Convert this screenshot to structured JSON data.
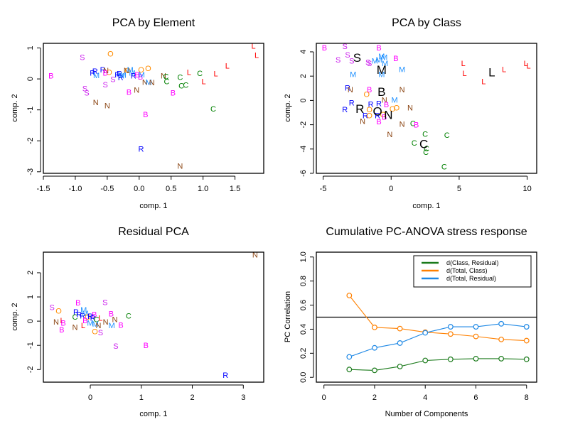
{
  "colors": {
    "B": "#ff00ff",
    "C": "#008000",
    "L": "#ff0000",
    "M": "#1e90ff",
    "N": "#8b4513",
    "O": "#ff8c00",
    "R": "#0000ff",
    "S": "#cc22ee",
    "class_centroid": "#000000",
    "series_class_residual": "#1a7a1a",
    "series_total_class": "#ff8000",
    "series_total_residual": "#1e88e5"
  },
  "chart_data": [
    {
      "type": "scatter",
      "title": "PCA by Element",
      "xlabel": "comp. 1",
      "ylabel": "comp. 2",
      "xlim": [
        -1.5,
        1.95
      ],
      "ylim": [
        -3.05,
        1.15
      ],
      "xticks": [
        "-1.5",
        "-1.0",
        "-0.5",
        "0.0",
        "0.5",
        "1.0",
        "1.5"
      ],
      "xtick_values": [
        -1.5,
        -1.0,
        -0.5,
        0.0,
        0.5,
        1.0,
        1.5
      ],
      "yticks": [
        "1",
        "0",
        "-1",
        "-2",
        "-3"
      ],
      "ytick_values": [
        1,
        0,
        -1,
        -2,
        -3
      ],
      "points": [
        {
          "label": "B",
          "x": -1.38,
          "y": 0.08
        },
        {
          "label": "S",
          "x": -0.89,
          "y": 0.68
        },
        {
          "label": "O",
          "x": -0.45,
          "y": 0.8
        },
        {
          "label": "R",
          "x": -0.73,
          "y": 0.18
        },
        {
          "label": "M",
          "x": -0.67,
          "y": 0.1
        },
        {
          "label": "R",
          "x": -0.69,
          "y": 0.23
        },
        {
          "label": "R",
          "x": -0.57,
          "y": 0.28
        },
        {
          "label": "N",
          "x": -0.52,
          "y": 0.26
        },
        {
          "label": "O",
          "x": -0.47,
          "y": 0.2
        },
        {
          "label": "B",
          "x": -0.53,
          "y": 0.17
        },
        {
          "label": "S",
          "x": -0.53,
          "y": -0.2
        },
        {
          "label": "S",
          "x": -0.41,
          "y": -0.03
        },
        {
          "label": "R",
          "x": -0.34,
          "y": 0.12
        },
        {
          "label": "R",
          "x": -0.31,
          "y": 0.15
        },
        {
          "label": "M",
          "x": -0.28,
          "y": 0.08
        },
        {
          "label": "R",
          "x": -0.29,
          "y": 0.03
        },
        {
          "label": "M",
          "x": -0.25,
          "y": 0.11
        },
        {
          "label": "O",
          "x": -0.18,
          "y": 0.26
        },
        {
          "label": "N",
          "x": -0.2,
          "y": 0.25
        },
        {
          "label": "M",
          "x": -0.14,
          "y": 0.28
        },
        {
          "label": "M",
          "x": -0.11,
          "y": 0.18
        },
        {
          "label": "R",
          "x": -0.09,
          "y": 0.08
        },
        {
          "label": "B",
          "x": -0.03,
          "y": 0.12
        },
        {
          "label": "O",
          "x": 0.03,
          "y": 0.28
        },
        {
          "label": "O",
          "x": 0.14,
          "y": 0.32
        },
        {
          "label": "B",
          "x": 0.02,
          "y": 0.05
        },
        {
          "label": "M",
          "x": 0.04,
          "y": 0.12
        },
        {
          "label": "B",
          "x": -0.16,
          "y": -0.45
        },
        {
          "label": "N",
          "x": -0.04,
          "y": -0.38
        },
        {
          "label": "S",
          "x": -0.85,
          "y": -0.33
        },
        {
          "label": "S",
          "x": -0.82,
          "y": -0.47
        },
        {
          "label": "N",
          "x": -0.68,
          "y": -0.78
        },
        {
          "label": "N",
          "x": -0.5,
          "y": -0.88
        },
        {
          "label": "B",
          "x": 0.1,
          "y": -1.17
        },
        {
          "label": "N",
          "x": 0.09,
          "y": -0.12
        },
        {
          "label": "M",
          "x": 0.15,
          "y": -0.12
        },
        {
          "label": "N",
          "x": 0.2,
          "y": -0.14
        },
        {
          "label": "N",
          "x": 0.38,
          "y": 0.08
        },
        {
          "label": "C",
          "x": 0.42,
          "y": 0.06
        },
        {
          "label": "C",
          "x": 0.43,
          "y": -0.1
        },
        {
          "label": "C",
          "x": 0.64,
          "y": 0.04
        },
        {
          "label": "L",
          "x": 0.78,
          "y": 0.2
        },
        {
          "label": "B",
          "x": 0.53,
          "y": -0.47
        },
        {
          "label": "C",
          "x": 0.66,
          "y": -0.24
        },
        {
          "label": "C",
          "x": 0.73,
          "y": -0.22
        },
        {
          "label": "C",
          "x": 0.95,
          "y": 0.16
        },
        {
          "label": "L",
          "x": 1.01,
          "y": -0.1
        },
        {
          "label": "L",
          "x": 1.2,
          "y": 0.15
        },
        {
          "label": "L",
          "x": 1.38,
          "y": 0.4
        },
        {
          "label": "L",
          "x": 1.79,
          "y": 1.05
        },
        {
          "label": "L",
          "x": 1.84,
          "y": 0.75
        },
        {
          "label": "C",
          "x": 1.16,
          "y": -0.99
        },
        {
          "label": "R",
          "x": 0.03,
          "y": -2.28
        },
        {
          "label": "N",
          "x": 0.64,
          "y": -2.83
        }
      ]
    },
    {
      "type": "scatter",
      "title": "PCA by Class",
      "xlabel": "comp. 1",
      "ylabel": "comp. 2",
      "xlim": [
        -5.5,
        10.7
      ],
      "ylim": [
        -6.0,
        4.7
      ],
      "xticks": [
        "-5",
        "0",
        "5",
        "10"
      ],
      "xtick_values": [
        -5,
        0,
        5,
        10
      ],
      "yticks": [
        "4",
        "2",
        "0",
        "-2",
        "-4",
        "-6"
      ],
      "ytick_values": [
        4,
        2,
        0,
        -2,
        -4,
        -6
      ],
      "points": [
        {
          "label": "B",
          "x": -4.9,
          "y": 4.3
        },
        {
          "label": "S",
          "x": -3.4,
          "y": 4.4
        },
        {
          "label": "S",
          "x": -3.2,
          "y": 3.7
        },
        {
          "label": "S",
          "x": -3.9,
          "y": 3.3
        },
        {
          "label": "S",
          "x": -2.9,
          "y": 3.2
        },
        {
          "label": "B",
          "x": -0.9,
          "y": 4.3
        },
        {
          "label": "S",
          "x": -1.7,
          "y": 3.1
        },
        {
          "label": "S",
          "x": -1.6,
          "y": 3.0
        },
        {
          "label": "M",
          "x": -1.2,
          "y": 3.2
        },
        {
          "label": "M",
          "x": -0.9,
          "y": 3.3
        },
        {
          "label": "M",
          "x": -0.5,
          "y": 3.5
        },
        {
          "label": "M",
          "x": -0.45,
          "y": 3.0
        },
        {
          "label": "M",
          "x": -0.7,
          "y": 3.6
        },
        {
          "label": "B",
          "x": 0.35,
          "y": 3.4
        },
        {
          "label": "M",
          "x": -2.8,
          "y": 2.1
        },
        {
          "label": "M",
          "x": -0.7,
          "y": 2.1
        },
        {
          "label": "M",
          "x": 0.8,
          "y": 2.5
        },
        {
          "label": "R",
          "x": -3.2,
          "y": 1.0
        },
        {
          "label": "N",
          "x": -3.0,
          "y": 0.85
        },
        {
          "label": "B",
          "x": -1.6,
          "y": 0.85
        },
        {
          "label": "O",
          "x": -1.8,
          "y": 0.45
        },
        {
          "label": "N",
          "x": 0.8,
          "y": 0.85
        },
        {
          "label": "N",
          "x": -0.5,
          "y": 0.0
        },
        {
          "label": "M",
          "x": 0.25,
          "y": 0.0
        },
        {
          "label": "R",
          "x": -2.9,
          "y": -0.25
        },
        {
          "label": "R",
          "x": -3.4,
          "y": -0.8
        },
        {
          "label": "R",
          "x": -1.5,
          "y": -0.35
        },
        {
          "label": "R",
          "x": -0.9,
          "y": -0.3
        },
        {
          "label": "B",
          "x": -0.35,
          "y": -0.4
        },
        {
          "label": "O",
          "x": -1.6,
          "y": -0.8
        },
        {
          "label": "O",
          "x": 0.1,
          "y": -0.75
        },
        {
          "label": "O",
          "x": 0.4,
          "y": -0.65
        },
        {
          "label": "N",
          "x": 1.4,
          "y": -0.65
        },
        {
          "label": "R",
          "x": -1.9,
          "y": -1.3
        },
        {
          "label": "O",
          "x": -1.6,
          "y": -1.3
        },
        {
          "label": "R",
          "x": -1.0,
          "y": -1.3
        },
        {
          "label": "O",
          "x": -0.6,
          "y": -1.2
        },
        {
          "label": "B",
          "x": -0.5,
          "y": -1.4
        },
        {
          "label": "N",
          "x": -2.1,
          "y": -1.75
        },
        {
          "label": "B",
          "x": -0.9,
          "y": -1.8
        },
        {
          "label": "N",
          "x": 0.8,
          "y": -2.0
        },
        {
          "label": "C",
          "x": 1.6,
          "y": -1.95
        },
        {
          "label": "B",
          "x": 1.85,
          "y": -2.05
        },
        {
          "label": "N",
          "x": -0.1,
          "y": -2.85
        },
        {
          "label": "C",
          "x": 2.5,
          "y": -2.8
        },
        {
          "label": "C",
          "x": 4.1,
          "y": -2.9
        },
        {
          "label": "C",
          "x": 1.7,
          "y": -3.55
        },
        {
          "label": "C",
          "x": 2.6,
          "y": -4.0
        },
        {
          "label": "C",
          "x": 2.55,
          "y": -4.3
        },
        {
          "label": "C",
          "x": 3.9,
          "y": -5.5
        },
        {
          "label": "L",
          "x": 5.3,
          "y": 3.0
        },
        {
          "label": "L",
          "x": 5.4,
          "y": 2.2
        },
        {
          "label": "L",
          "x": 6.8,
          "y": 1.5
        },
        {
          "label": "L",
          "x": 8.3,
          "y": 2.5
        },
        {
          "label": "L",
          "x": 9.9,
          "y": 3.0
        },
        {
          "label": "L",
          "x": 10.1,
          "y": 2.8
        }
      ],
      "centroids": [
        {
          "label": "S",
          "x": -2.5,
          "y": 3.5
        },
        {
          "label": "M",
          "x": -0.7,
          "y": 2.5
        },
        {
          "label": "B",
          "x": -0.7,
          "y": 0.7
        },
        {
          "label": "R",
          "x": -2.3,
          "y": -0.7
        },
        {
          "label": "O",
          "x": -1.0,
          "y": -0.9
        },
        {
          "label": "N",
          "x": -0.2,
          "y": -1.2
        },
        {
          "label": "C",
          "x": 2.4,
          "y": -3.6
        },
        {
          "label": "L",
          "x": 7.4,
          "y": 2.3
        }
      ]
    },
    {
      "type": "scatter",
      "title": "Residual PCA",
      "xlabel": "comp. 1",
      "ylabel": "comp. 2",
      "xlim": [
        -0.92,
        3.4
      ],
      "ylim": [
        -2.52,
        2.85
      ],
      "xticks": [
        "0",
        "1",
        "2",
        "3"
      ],
      "xtick_values": [
        0,
        1,
        2,
        3
      ],
      "yticks": [
        "2",
        "1",
        "0",
        "-1",
        "-2"
      ],
      "ytick_values": [
        2,
        1,
        0,
        -1,
        -2
      ],
      "points": [
        {
          "label": "S",
          "x": -0.75,
          "y": 0.55
        },
        {
          "label": "O",
          "x": -0.62,
          "y": 0.4
        },
        {
          "label": "N",
          "x": -0.67,
          "y": -0.05
        },
        {
          "label": "L",
          "x": -0.55,
          "y": 0.0
        },
        {
          "label": "B",
          "x": -0.53,
          "y": -0.1
        },
        {
          "label": "B",
          "x": -0.56,
          "y": -0.38
        },
        {
          "label": "N",
          "x": -0.3,
          "y": -0.28
        },
        {
          "label": "L",
          "x": -0.14,
          "y": -0.2
        },
        {
          "label": "B",
          "x": -0.24,
          "y": 0.73
        },
        {
          "label": "S",
          "x": 0.29,
          "y": 0.75
        },
        {
          "label": "R",
          "x": -0.28,
          "y": 0.35
        },
        {
          "label": "M",
          "x": -0.13,
          "y": 0.45
        },
        {
          "label": "C",
          "x": -0.3,
          "y": 0.15
        },
        {
          "label": "R",
          "x": -0.22,
          "y": 0.25
        },
        {
          "label": "R",
          "x": -0.15,
          "y": 0.2
        },
        {
          "label": "M",
          "x": -0.1,
          "y": 0.3
        },
        {
          "label": "O",
          "x": -0.05,
          "y": 0.15
        },
        {
          "label": "R",
          "x": 0.0,
          "y": 0.18
        },
        {
          "label": "B",
          "x": 0.08,
          "y": 0.25
        },
        {
          "label": "R",
          "x": 0.05,
          "y": 0.1
        },
        {
          "label": "B",
          "x": -0.1,
          "y": 0.0
        },
        {
          "label": "M",
          "x": 0.0,
          "y": -0.1
        },
        {
          "label": "C",
          "x": 0.12,
          "y": 0.05
        },
        {
          "label": "M",
          "x": 0.1,
          "y": -0.15
        },
        {
          "label": "N",
          "x": 0.16,
          "y": -0.2
        },
        {
          "label": "L",
          "x": 0.2,
          "y": 0.1
        },
        {
          "label": "N",
          "x": 0.3,
          "y": -0.05
        },
        {
          "label": "O",
          "x": 0.09,
          "y": -0.45
        },
        {
          "label": "S",
          "x": 0.2,
          "y": -0.5
        },
        {
          "label": "B",
          "x": 0.41,
          "y": 0.28
        },
        {
          "label": "N",
          "x": 0.48,
          "y": 0.05
        },
        {
          "label": "M",
          "x": 0.42,
          "y": -0.2
        },
        {
          "label": "B",
          "x": 0.6,
          "y": -0.18
        },
        {
          "label": "C",
          "x": 0.75,
          "y": 0.2
        },
        {
          "label": "S",
          "x": 0.5,
          "y": -1.05
        },
        {
          "label": "B",
          "x": 1.09,
          "y": -1.02
        },
        {
          "label": "R",
          "x": 2.65,
          "y": -2.25
        },
        {
          "label": "N",
          "x": 3.23,
          "y": 2.72
        }
      ]
    },
    {
      "type": "line",
      "title": "Cumulative PC-ANOVA stress response",
      "xlabel": "Number of Components",
      "ylabel": "PC Correlation",
      "xlim": [
        -0.3,
        8.4
      ],
      "ylim": [
        -0.04,
        1.04
      ],
      "xticks": [
        "0",
        "2",
        "4",
        "6",
        "8"
      ],
      "xtick_values": [
        0,
        2,
        4,
        6,
        8
      ],
      "yticks": [
        "0.0",
        "0.2",
        "0.4",
        "0.6",
        "0.8",
        "1.0"
      ],
      "ytick_values": [
        0.0,
        0.2,
        0.4,
        0.6,
        0.8,
        1.0
      ],
      "hline": 0.5,
      "legend_position": "top-right",
      "x": [
        1,
        2,
        3,
        4,
        5,
        6,
        7,
        8
      ],
      "series": [
        {
          "name": "d(Class, Residual)",
          "color_key": "series_class_residual",
          "values": [
            0.065,
            0.058,
            0.09,
            0.14,
            0.15,
            0.155,
            0.155,
            0.15
          ]
        },
        {
          "name": "d(Total, Class)",
          "color_key": "series_total_class",
          "values": [
            0.68,
            0.415,
            0.405,
            0.375,
            0.36,
            0.34,
            0.315,
            0.305
          ]
        },
        {
          "name": "d(Total, Residual)",
          "color_key": "series_total_residual",
          "values": [
            0.17,
            0.245,
            0.285,
            0.37,
            0.42,
            0.42,
            0.445,
            0.42
          ]
        }
      ]
    }
  ]
}
